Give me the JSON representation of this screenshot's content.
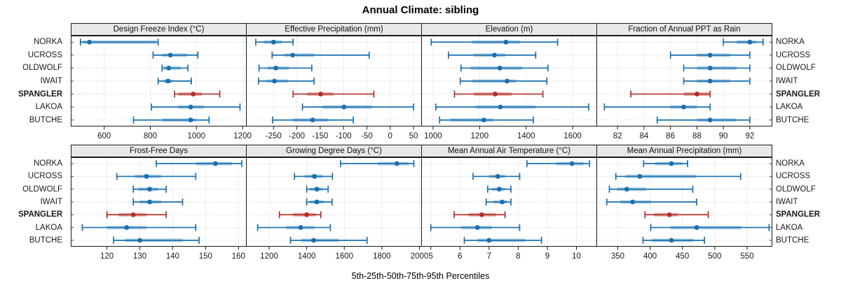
{
  "title": "Annual Climate: sibling",
  "caption": "5th-25th-50th-75th-95th Percentiles",
  "stations": [
    "NORKA",
    "UCROSS",
    "OLDWOLF",
    "IWAIT",
    "SPANGLER",
    "LAKOA",
    "BUTCHE"
  ],
  "highlight_station": "SPANGLER",
  "colors": {
    "series_blue": "#1a6faf",
    "series_blue_light": "#a8cee4",
    "highlight_red": "#b0302a",
    "highlight_red_light": "#e5aaa4",
    "grid": "#c6c6c6",
    "strip_bg": "#e8e8e8",
    "border": "#1a1a1a"
  },
  "chart_data": [
    {
      "type": "dotplot",
      "title": "Design Freeze Index (°C)",
      "xlim": [
        455,
        1218
      ],
      "ticks": [
        600,
        800,
        1000,
        1200
      ],
      "percentile_labels": [
        "5th",
        "25th",
        "50th",
        "75th",
        "95th"
      ],
      "series": [
        {
          "name": "NORKA",
          "percentiles": [
            497,
            506,
            536,
            828,
            834
          ]
        },
        {
          "name": "UCROSS",
          "percentiles": [
            812,
            851,
            887,
            960,
            1006
          ]
        },
        {
          "name": "OLDWOLF",
          "percentiles": [
            851,
            858,
            880,
            932,
            963
          ]
        },
        {
          "name": "IWAIT",
          "percentiles": [
            834,
            857,
            877,
            897,
            978
          ]
        },
        {
          "name": "SPANGLER",
          "percentiles": [
            905,
            921,
            986,
            1024,
            1101
          ]
        },
        {
          "name": "LAKOA",
          "percentiles": [
            805,
            921,
            975,
            1034,
            1189
          ]
        },
        {
          "name": "BUTCHE",
          "percentiles": [
            727,
            853,
            975,
            998,
            1055
          ]
        }
      ]
    },
    {
      "type": "dotplot",
      "title": "Effective Precipitation (mm)",
      "xlim": [
        -309,
        68
      ],
      "ticks": [
        -250,
        -200,
        -150,
        -100,
        -50,
        0,
        50
      ],
      "series": [
        {
          "name": "NORKA",
          "percentiles": [
            -288,
            -271,
            -250,
            -232,
            -208
          ]
        },
        {
          "name": "UCROSS",
          "percentiles": [
            -253,
            -227,
            -209,
            -163,
            -45
          ]
        },
        {
          "name": "OLDWOLF",
          "percentiles": [
            -281,
            -263,
            -245,
            -217,
            -168
          ]
        },
        {
          "name": "IWAIT",
          "percentiles": [
            -282,
            -265,
            -248,
            -219,
            -163
          ]
        },
        {
          "name": "SPANGLER",
          "percentiles": [
            -208,
            -178,
            -149,
            -122,
            -35
          ]
        },
        {
          "name": "LAKOA",
          "percentiles": [
            -188,
            -145,
            -99,
            -39,
            50
          ]
        },
        {
          "name": "BUTCHE",
          "percentiles": [
            -252,
            -209,
            -166,
            -132,
            -79
          ]
        }
      ]
    },
    {
      "type": "dotplot",
      "title": "Elevation (m)",
      "xlim": [
        949,
        1705
      ],
      "ticks": [
        1000,
        1200,
        1400,
        1600
      ],
      "series": [
        {
          "name": "NORKA",
          "percentiles": [
            992,
            1168,
            1313,
            1374,
            1535
          ]
        },
        {
          "name": "UCROSS",
          "percentiles": [
            1066,
            1175,
            1264,
            1311,
            1441
          ]
        },
        {
          "name": "OLDWOLF",
          "percentiles": [
            1120,
            1161,
            1287,
            1384,
            1494
          ]
        },
        {
          "name": "IWAIT",
          "percentiles": [
            1117,
            1168,
            1318,
            1356,
            1489
          ]
        },
        {
          "name": "SPANGLER",
          "percentiles": [
            1092,
            1177,
            1267,
            1338,
            1472
          ]
        },
        {
          "name": "LAKOA",
          "percentiles": [
            1012,
            1182,
            1289,
            1441,
            1669
          ]
        },
        {
          "name": "BUTCHE",
          "percentiles": [
            1028,
            1074,
            1218,
            1258,
            1431
          ]
        }
      ]
    },
    {
      "type": "dotplot",
      "title": "Fraction of Annual PPT as Rain",
      "xlim": [
        80.4,
        93.7
      ],
      "ticks": [
        82,
        84,
        86,
        88,
        90,
        92
      ],
      "series": [
        {
          "name": "NORKA",
          "percentiles": [
            90,
            91,
            92,
            92.5,
            93
          ]
        },
        {
          "name": "UCROSS",
          "percentiles": [
            86,
            88,
            89,
            90.5,
            92
          ]
        },
        {
          "name": "OLDWOLF",
          "percentiles": [
            87,
            88,
            89,
            91,
            92
          ]
        },
        {
          "name": "IWAIT",
          "percentiles": [
            87,
            88,
            89,
            90.5,
            92
          ]
        },
        {
          "name": "SPANGLER",
          "percentiles": [
            83,
            87,
            88,
            89,
            89
          ]
        },
        {
          "name": "LAKOA",
          "percentiles": [
            81,
            86,
            87,
            88,
            89
          ]
        },
        {
          "name": "BUTCHE",
          "percentiles": [
            85,
            88,
            89,
            91,
            92
          ]
        }
      ]
    },
    {
      "type": "dotplot",
      "title": "Frost-Free Days",
      "xlim": [
        109,
        162.5
      ],
      "ticks": [
        120,
        130,
        140,
        150,
        160
      ],
      "series": [
        {
          "name": "NORKA",
          "percentiles": [
            135,
            147,
            153,
            158,
            161
          ]
        },
        {
          "name": "UCROSS",
          "percentiles": [
            123,
            128.5,
            132,
            136.5,
            147
          ]
        },
        {
          "name": "OLDWOLF",
          "percentiles": [
            128,
            129.5,
            133,
            135.5,
            138
          ]
        },
        {
          "name": "IWAIT",
          "percentiles": [
            128,
            130,
            133,
            136.5,
            143
          ]
        },
        {
          "name": "SPANGLER",
          "percentiles": [
            120,
            123.5,
            128,
            132,
            138
          ]
        },
        {
          "name": "LAKOA",
          "percentiles": [
            112.5,
            120,
            126,
            132,
            147
          ]
        },
        {
          "name": "BUTCHE",
          "percentiles": [
            122,
            125.5,
            130,
            143,
            148
          ]
        }
      ]
    },
    {
      "type": "dotplot",
      "title": "Growing Degree Days (°C)",
      "xlim": [
        1077,
        2013
      ],
      "ticks": [
        1200,
        1400,
        1600,
        1800,
        2000
      ],
      "series": [
        {
          "name": "NORKA",
          "percentiles": [
            1580,
            1777,
            1880,
            1943,
            1970
          ]
        },
        {
          "name": "UCROSS",
          "percentiles": [
            1335,
            1390,
            1441,
            1486,
            1537
          ]
        },
        {
          "name": "OLDWOLF",
          "percentiles": [
            1400,
            1416,
            1454,
            1486,
            1514
          ]
        },
        {
          "name": "IWAIT",
          "percentiles": [
            1400,
            1416,
            1454,
            1490,
            1535
          ]
        },
        {
          "name": "SPANGLER",
          "percentiles": [
            1255,
            1327,
            1400,
            1448,
            1475
          ]
        },
        {
          "name": "LAKOA",
          "percentiles": [
            1139,
            1289,
            1368,
            1441,
            1526
          ]
        },
        {
          "name": "BUTCHE",
          "percentiles": [
            1314,
            1371,
            1437,
            1570,
            1721
          ]
        }
      ]
    },
    {
      "type": "dotplot",
      "title": "Mean Annual Air Temperature (°C)",
      "xlim": [
        4.67,
        10.71
      ],
      "ticks": [
        5,
        6,
        7,
        8,
        9,
        10
      ],
      "series": [
        {
          "name": "NORKA",
          "percentiles": [
            8.3,
            9.3,
            9.85,
            10.25,
            10.45
          ]
        },
        {
          "name": "UCROSS",
          "percentiles": [
            6.45,
            7.0,
            7.3,
            7.55,
            8.05
          ]
        },
        {
          "name": "OLDWOLF",
          "percentiles": [
            6.95,
            7.1,
            7.35,
            7.55,
            7.75
          ]
        },
        {
          "name": "IWAIT",
          "percentiles": [
            6.9,
            7.15,
            7.45,
            7.6,
            7.75
          ]
        },
        {
          "name": "SPANGLER",
          "percentiles": [
            5.8,
            6.3,
            6.75,
            7.25,
            7.55
          ]
        },
        {
          "name": "LAKOA",
          "percentiles": [
            5.0,
            6.05,
            6.6,
            7.1,
            8.05
          ]
        },
        {
          "name": "BUTCHE",
          "percentiles": [
            6.15,
            6.6,
            7.0,
            8.25,
            8.8
          ]
        }
      ]
    },
    {
      "type": "dotplot",
      "title": "Mean Annual Precipitation (mm)",
      "xlim": [
        317,
        589
      ],
      "ticks": [
        350,
        400,
        450,
        500,
        550
      ],
      "series": [
        {
          "name": "NORKA",
          "percentiles": [
            390,
            408,
            433,
            450,
            458
          ]
        },
        {
          "name": "UCROSS",
          "percentiles": [
            347,
            362,
            384,
            472,
            540
          ]
        },
        {
          "name": "OLDWOLF",
          "percentiles": [
            337,
            349,
            364,
            394,
            466
          ]
        },
        {
          "name": "IWAIT",
          "percentiles": [
            333,
            354,
            373,
            402,
            472
          ]
        },
        {
          "name": "SPANGLER",
          "percentiles": [
            392,
            406,
            430,
            443,
            490
          ]
        },
        {
          "name": "LAKOA",
          "percentiles": [
            401,
            431,
            472,
            541,
            584
          ]
        },
        {
          "name": "BUTCHE",
          "percentiles": [
            389,
            403,
            433,
            467,
            484
          ]
        }
      ]
    }
  ]
}
